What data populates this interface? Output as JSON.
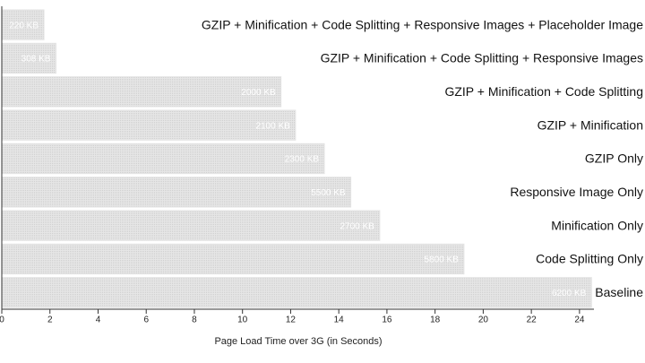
{
  "chart_data": {
    "type": "hbar",
    "x_label": "Page Load Time over 3G (in Seconds)",
    "categories": [
      "GZIP + Minification + Code Splitting + Responsive Images + Placeholder Image",
      "GZIP + Minification + Code Splitting + Responsive Images",
      "GZIP + Minification + Code Splitting",
      "GZIP + Minification",
      "GZIP Only",
      "Responsive Image Only",
      "Minification Only",
      "Code Splitting Only",
      "Baseline"
    ],
    "values": [
      1.75,
      2.25,
      11.6,
      12.2,
      13.4,
      14.5,
      15.7,
      19.2,
      24.5
    ],
    "size_labels": [
      "220 KB",
      "308 KB",
      "2000 KB",
      "2100 KB",
      "2300 KB",
      "5500 KB",
      "2700 KB",
      "5800 KB",
      "6200 KB"
    ],
    "color": "#e3e3e3",
    "xlim": [
      0,
      24.6
    ],
    "xticks": [
      0,
      2,
      4,
      6,
      8,
      10,
      12,
      14,
      16,
      18,
      20,
      22,
      24
    ]
  }
}
